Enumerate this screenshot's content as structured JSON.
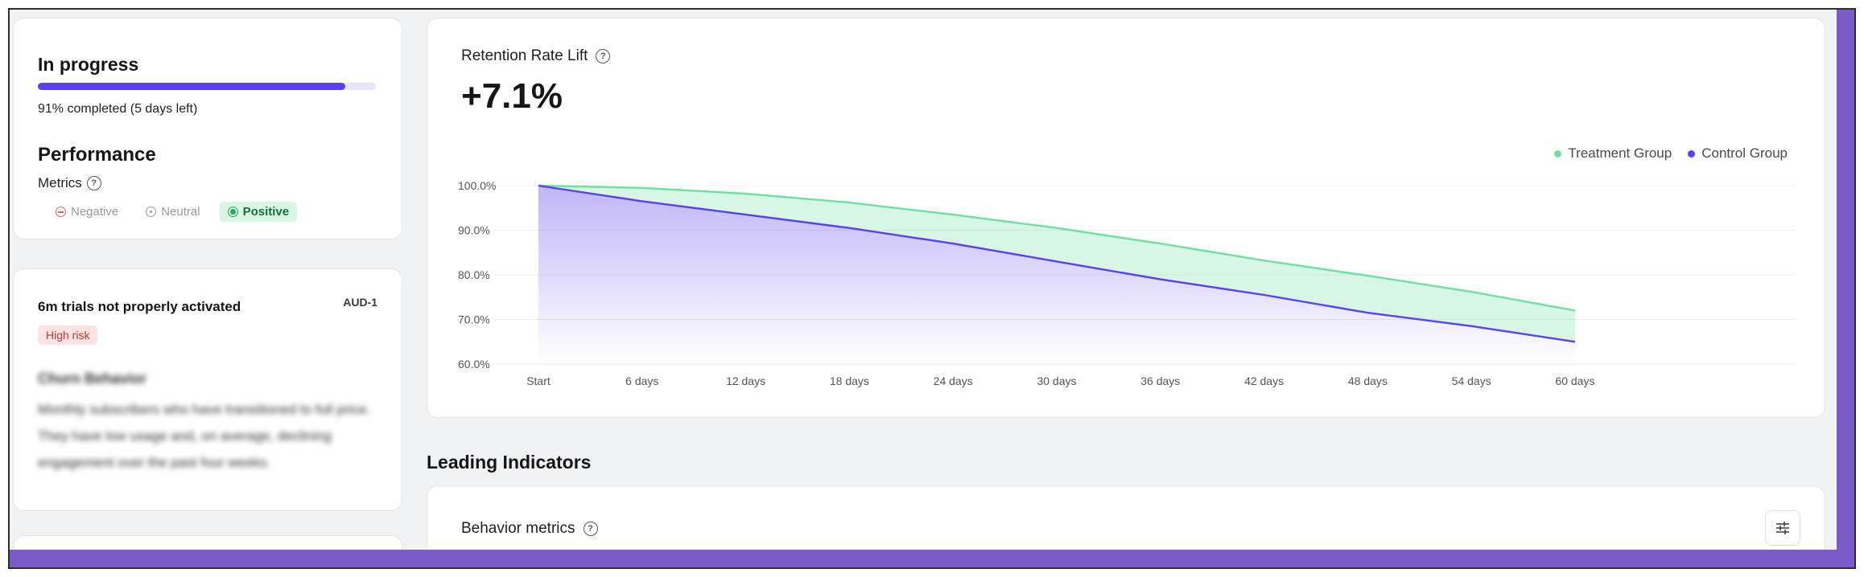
{
  "progress": {
    "title": "In progress",
    "percent": 91,
    "status_text": "91% completed (5 days left)"
  },
  "performance": {
    "title": "Performance",
    "metrics_label": "Metrics",
    "legend": {
      "negative": "Negative",
      "neutral": "Neutral",
      "positive": "Positive"
    }
  },
  "risk_card": {
    "title": "6m trials not properly activated",
    "code": "AUD-1",
    "badge": "High risk",
    "blurred_title": "Churn Behavior",
    "blurred_body": "Monthly subscribers who have transitioned to full price. They have low usage and, on average, declining engagement over the past four weeks."
  },
  "chart_card": {
    "title": "Retention Rate Lift",
    "value": "+7.1%"
  },
  "chart_data": {
    "type": "area",
    "categories": [
      "Start",
      "6 days",
      "12 days",
      "18 days",
      "24 days",
      "30 days",
      "36 days",
      "42 days",
      "48 days",
      "54 days",
      "60 days"
    ],
    "y_ticks": [
      "100.0%",
      "90.0%",
      "80.0%",
      "70.0%",
      "60.0%"
    ],
    "ylim": [
      60,
      100
    ],
    "legend_position": "top-right",
    "grid": true,
    "series": [
      {
        "name": "Treatment Group",
        "color": "#6ee0a0",
        "values": [
          100,
          99.5,
          98.2,
          96.2,
          93.5,
          90.5,
          87,
          83.2,
          79.8,
          76.2,
          72
        ]
      },
      {
        "name": "Control Group",
        "color": "#5b3ff0",
        "values": [
          100,
          96.5,
          93.5,
          90.5,
          87,
          83,
          79,
          75.5,
          71.5,
          68.5,
          65
        ]
      }
    ]
  },
  "leading_indicators": {
    "section_title": "Leading Indicators",
    "behavior_title": "Behavior metrics"
  },
  "icons": {
    "help": "?",
    "filter": "sliders-icon"
  }
}
